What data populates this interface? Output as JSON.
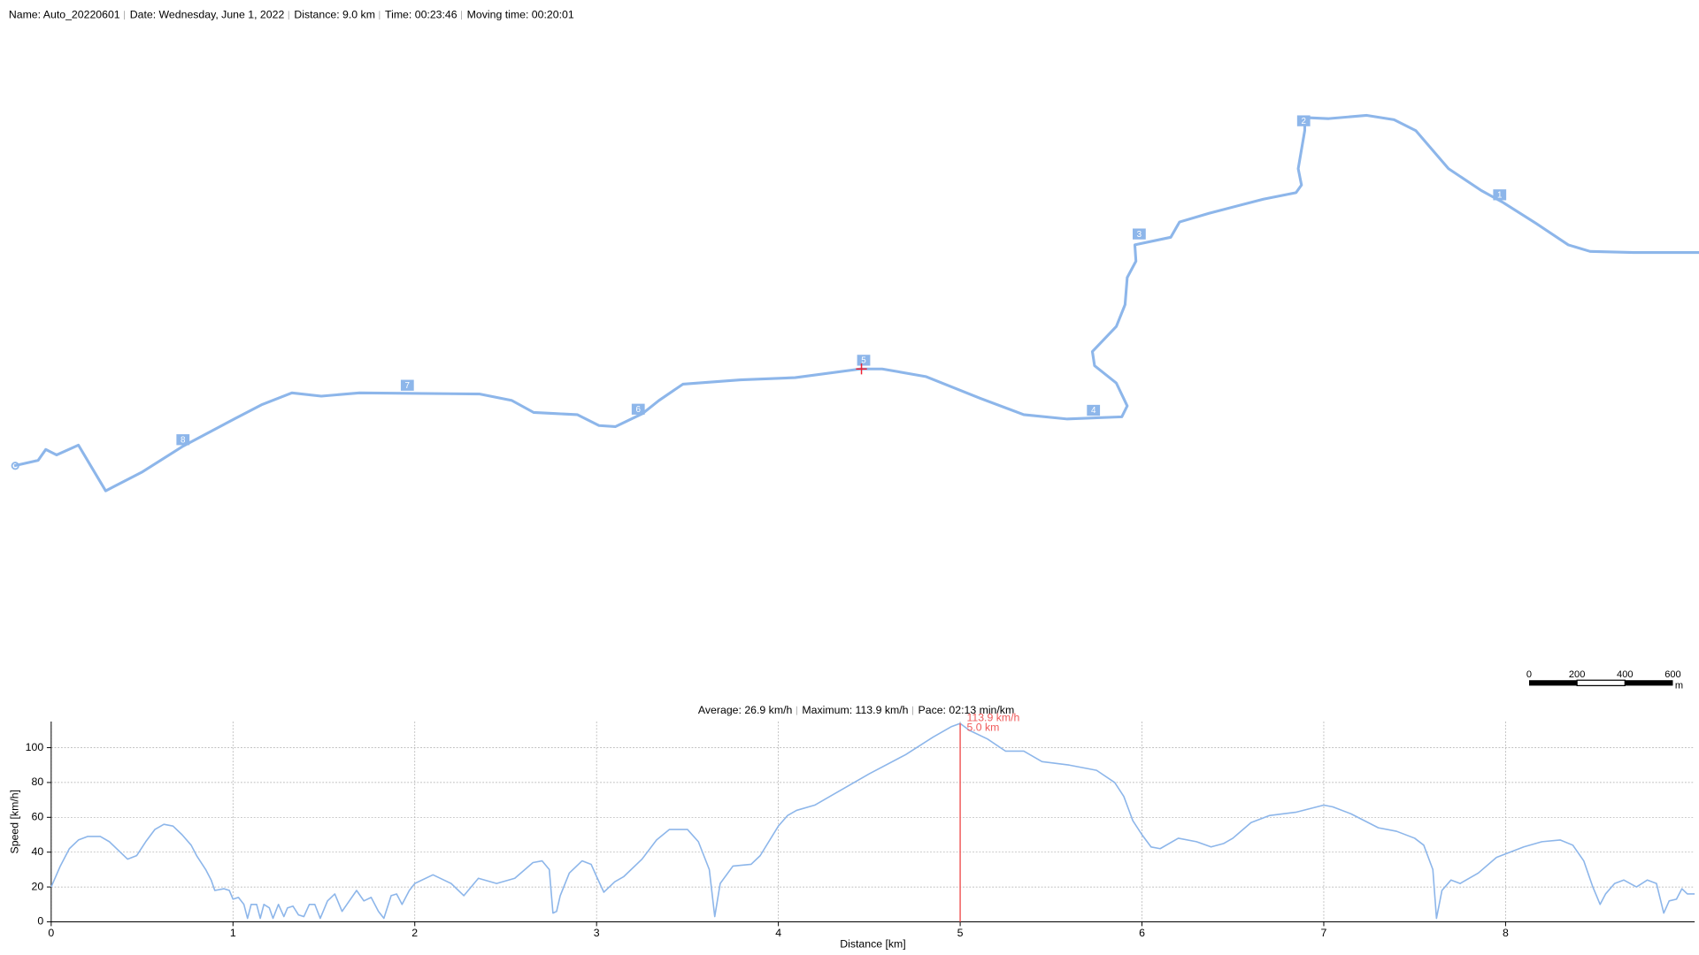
{
  "header": {
    "items": [
      "Name: Auto_20220601",
      "Date: Wednesday, June 1, 2022",
      "Distance: 9.0 km",
      "Time: 00:23:46",
      "Moving time: 00:20:01"
    ]
  },
  "map": {
    "markers": [
      "1",
      "2",
      "3",
      "4",
      "5",
      "6",
      "7",
      "8"
    ],
    "scale_bar": {
      "labels": [
        "0",
        "200",
        "400",
        "600"
      ],
      "unit": "m"
    }
  },
  "stats": {
    "items": [
      "Average: 26.9 km/h",
      "Maximum: 113.9 km/h",
      "Pace: 02:13 min/km"
    ]
  },
  "chart_data": {
    "type": "line",
    "x_label": "Distance [km]",
    "y_label": "Speed [km/h]",
    "color": "#8db6ea",
    "grid": true,
    "xlim": [
      0,
      9.04
    ],
    "xticks": [
      0,
      1,
      2,
      3,
      4,
      5,
      6,
      7,
      8
    ],
    "ylim": [
      0,
      115
    ],
    "yticks": [
      0,
      20,
      40,
      60,
      80,
      100
    ],
    "x": [
      0,
      0.05,
      0.1,
      0.15,
      0.2,
      0.27,
      0.32,
      0.38,
      0.42,
      0.47,
      0.52,
      0.57,
      0.62,
      0.67,
      0.72,
      0.77,
      0.8,
      0.85,
      0.88,
      0.9,
      0.95,
      0.98,
      1.0,
      1.03,
      1.06,
      1.08,
      1.1,
      1.13,
      1.15,
      1.17,
      1.2,
      1.22,
      1.25,
      1.28,
      1.3,
      1.33,
      1.36,
      1.39,
      1.42,
      1.45,
      1.48,
      1.52,
      1.56,
      1.6,
      1.64,
      1.68,
      1.72,
      1.76,
      1.8,
      1.83,
      1.87,
      1.9,
      1.93,
      1.97,
      2.0,
      2.1,
      2.2,
      2.27,
      2.35,
      2.45,
      2.55,
      2.65,
      2.7,
      2.74,
      2.76,
      2.78,
      2.8,
      2.85,
      2.92,
      2.97,
      3.0,
      3.04,
      3.1,
      3.15,
      3.25,
      3.33,
      3.4,
      3.5,
      3.56,
      3.62,
      3.65,
      3.68,
      3.75,
      3.85,
      3.9,
      4.0,
      4.05,
      4.1,
      4.2,
      4.3,
      4.5,
      4.7,
      4.85,
      4.95,
      5.0,
      5.05,
      5.15,
      5.25,
      5.35,
      5.45,
      5.6,
      5.75,
      5.85,
      5.9,
      5.95,
      6.0,
      6.05,
      6.1,
      6.2,
      6.3,
      6.38,
      6.45,
      6.5,
      6.6,
      6.7,
      6.85,
      7.0,
      7.05,
      7.15,
      7.3,
      7.4,
      7.5,
      7.55,
      7.6,
      7.62,
      7.65,
      7.7,
      7.75,
      7.85,
      7.95,
      8.1,
      8.2,
      8.3,
      8.37,
      8.43,
      8.48,
      8.52,
      8.55,
      8.6,
      8.65,
      8.72,
      8.78,
      8.83,
      8.87,
      8.9,
      8.94,
      8.97,
      9.0,
      9.04
    ],
    "values": [
      20,
      32,
      42,
      47,
      49,
      49,
      46,
      40,
      36,
      38,
      46,
      53,
      56,
      55,
      50,
      44,
      38,
      30,
      24,
      18,
      19,
      18,
      13,
      14,
      10,
      2,
      10,
      10,
      2,
      10,
      8,
      2,
      10,
      3,
      8,
      9,
      4,
      3,
      10,
      10,
      2,
      12,
      16,
      6,
      12,
      18,
      12,
      14,
      6,
      2,
      15,
      16,
      10,
      18,
      22,
      27,
      22,
      15,
      25,
      22,
      25,
      34,
      35,
      30,
      5,
      6,
      15,
      28,
      35,
      33,
      26,
      17,
      23,
      26,
      36,
      47,
      53,
      53,
      46,
      30,
      3,
      22,
      32,
      33,
      38,
      55,
      61,
      64,
      67,
      73,
      85,
      96,
      106,
      112,
      113.9,
      110,
      105,
      98,
      98,
      92,
      90,
      87,
      80,
      72,
      58,
      50,
      43,
      42,
      48,
      46,
      43,
      45,
      48,
      57,
      61,
      63,
      67,
      66,
      62,
      54,
      52,
      48,
      44,
      30,
      2,
      18,
      24,
      22,
      28,
      37,
      43,
      46,
      47,
      44,
      35,
      20,
      10,
      16,
      22,
      24,
      20,
      24,
      22,
      5,
      12,
      13,
      19,
      16,
      16
    ],
    "cursor": {
      "x": 5.0,
      "y": 113.9,
      "y_label": "113.9 km/h",
      "x_label": "5.0 km"
    }
  }
}
